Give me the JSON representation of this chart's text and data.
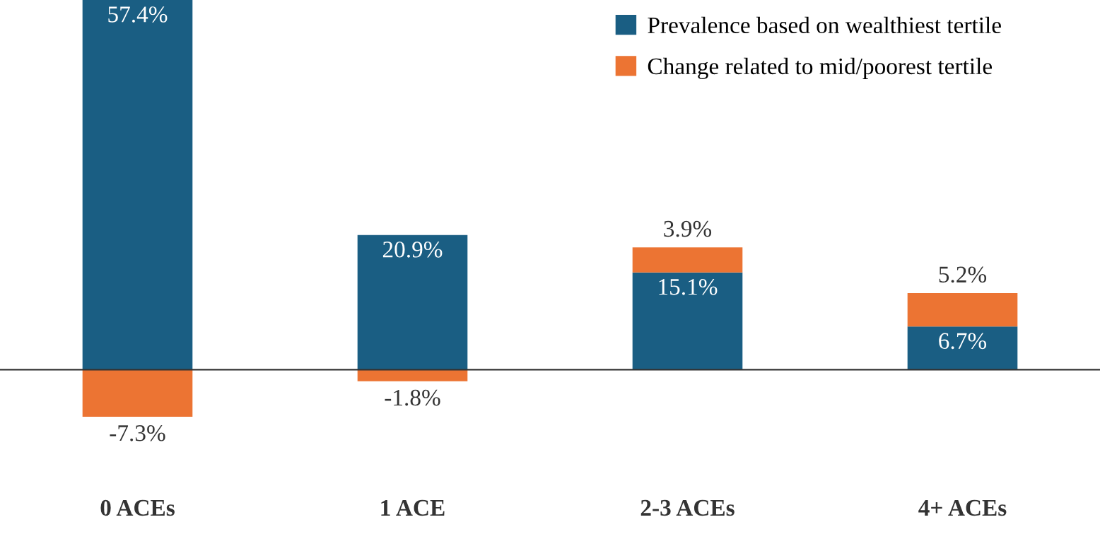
{
  "chart_data": {
    "type": "bar",
    "stacked": true,
    "categories": [
      "0 ACEs",
      "1 ACE",
      "2-3 ACEs",
      "4+ ACEs"
    ],
    "series": [
      {
        "name": "Prevalence based on wealthiest tertile",
        "color": "#1a5e83",
        "values": [
          57.4,
          20.9,
          15.1,
          6.7
        ],
        "value_labels": [
          "57.4%",
          "20.9%",
          "15.1%",
          "6.7%"
        ]
      },
      {
        "name": "Change related to mid/poorest tertile",
        "color": "#ec7433",
        "values": [
          -7.3,
          -1.8,
          3.9,
          5.2
        ],
        "value_labels": [
          "-7.3%",
          "-1.8%",
          "3.9%",
          "5.2%"
        ]
      }
    ],
    "ylim": [
      -25.5,
      57.4
    ],
    "tick_labels": "x",
    "legend": "top right",
    "grid": false
  }
}
